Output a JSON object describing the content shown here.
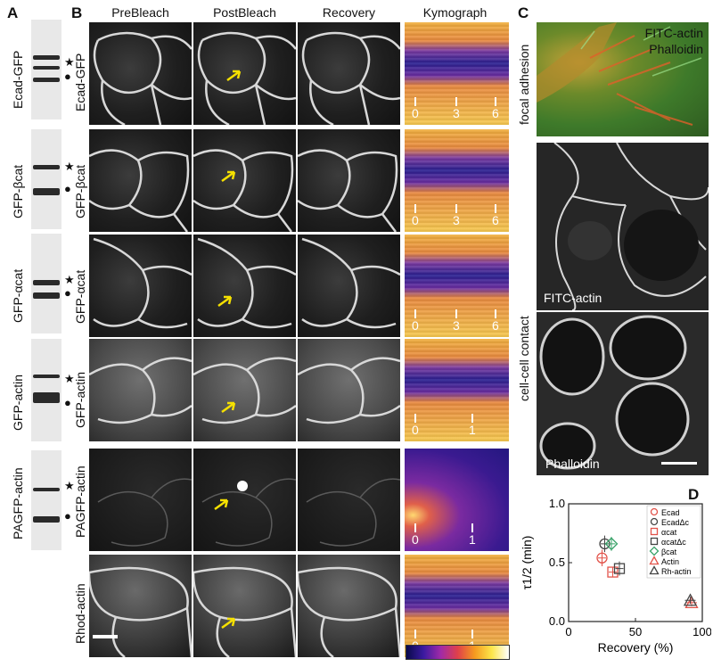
{
  "panels": {
    "a": "A",
    "b": "B",
    "c": "C",
    "d": "D"
  },
  "columns": [
    "PreBleach",
    "PostBleach",
    "Recovery",
    "Kymograph"
  ],
  "rows": [
    "Ecad-GFP",
    "GFP-βcat",
    "GFP-αcat",
    "GFP-actin",
    "PAGFP-actin",
    "Rhod-actin"
  ],
  "blots": [
    {
      "label": "Ecad-GFP"
    },
    {
      "label": "GFP-βcat"
    },
    {
      "label": "GFP-αcat"
    },
    {
      "label": "GFP-actin"
    },
    {
      "label": "PAGFP-actin"
    }
  ],
  "markers": {
    "star": "★",
    "dot": "●"
  },
  "kymo_ticks": [
    [
      "0",
      "3",
      "6"
    ],
    [
      "0",
      "3",
      "6"
    ],
    [
      "0",
      "3",
      "6"
    ],
    [
      "0",
      "1"
    ],
    [
      "0",
      "1"
    ],
    [
      "0",
      "1"
    ]
  ],
  "panel_c": {
    "side_labels": [
      "focal adhesion",
      "cell-cell contact"
    ],
    "legend": [
      "FITC-actin",
      "Phalloidin"
    ],
    "legend_colors": [
      "#3ec27a",
      "#e23a2a"
    ],
    "image_labels": [
      "FITC-actin",
      "Phalloidin"
    ]
  },
  "colors": {
    "arrow": "#f5e000",
    "scalebar": "#ffffff"
  },
  "chart_data": {
    "type": "scatter",
    "xlabel": "Recovery (%)",
    "ylabel": "τ1/2 (min)",
    "xlim": [
      0,
      100
    ],
    "ylim": [
      0,
      1.0
    ],
    "xticks": [
      "0",
      "50",
      "100"
    ],
    "yticks": [
      "0.0",
      "0.5",
      "1.0"
    ],
    "legend_position": "top-right",
    "series": [
      {
        "name": "Ecad",
        "marker": "circle",
        "color": "#e2534a",
        "x": 25,
        "y": 0.54,
        "xerr": 3,
        "yerr": 0.07
      },
      {
        "name": "EcadΔc",
        "marker": "circle",
        "color": "#444444",
        "x": 27,
        "y": 0.66,
        "xerr": 3,
        "yerr": 0.07
      },
      {
        "name": "αcat",
        "marker": "square",
        "color": "#e2534a",
        "x": 33,
        "y": 0.42,
        "xerr": 3,
        "yerr": 0.04
      },
      {
        "name": "αcatΔc",
        "marker": "square",
        "color": "#444444",
        "x": 38,
        "y": 0.45,
        "xerr": 3,
        "yerr": 0.06
      },
      {
        "name": "βcat",
        "marker": "diamond",
        "color": "#3aa36a",
        "x": 32,
        "y": 0.66,
        "xerr": 3,
        "yerr": 0.06
      },
      {
        "name": "Actin",
        "marker": "triangle",
        "color": "#e2534a",
        "x": 92,
        "y": 0.16,
        "xerr": 4,
        "yerr": 0.03
      },
      {
        "name": "Rh-actin",
        "marker": "triangle",
        "color": "#444444",
        "x": 91,
        "y": 0.18,
        "xerr": 4,
        "yerr": 0.03
      }
    ]
  }
}
